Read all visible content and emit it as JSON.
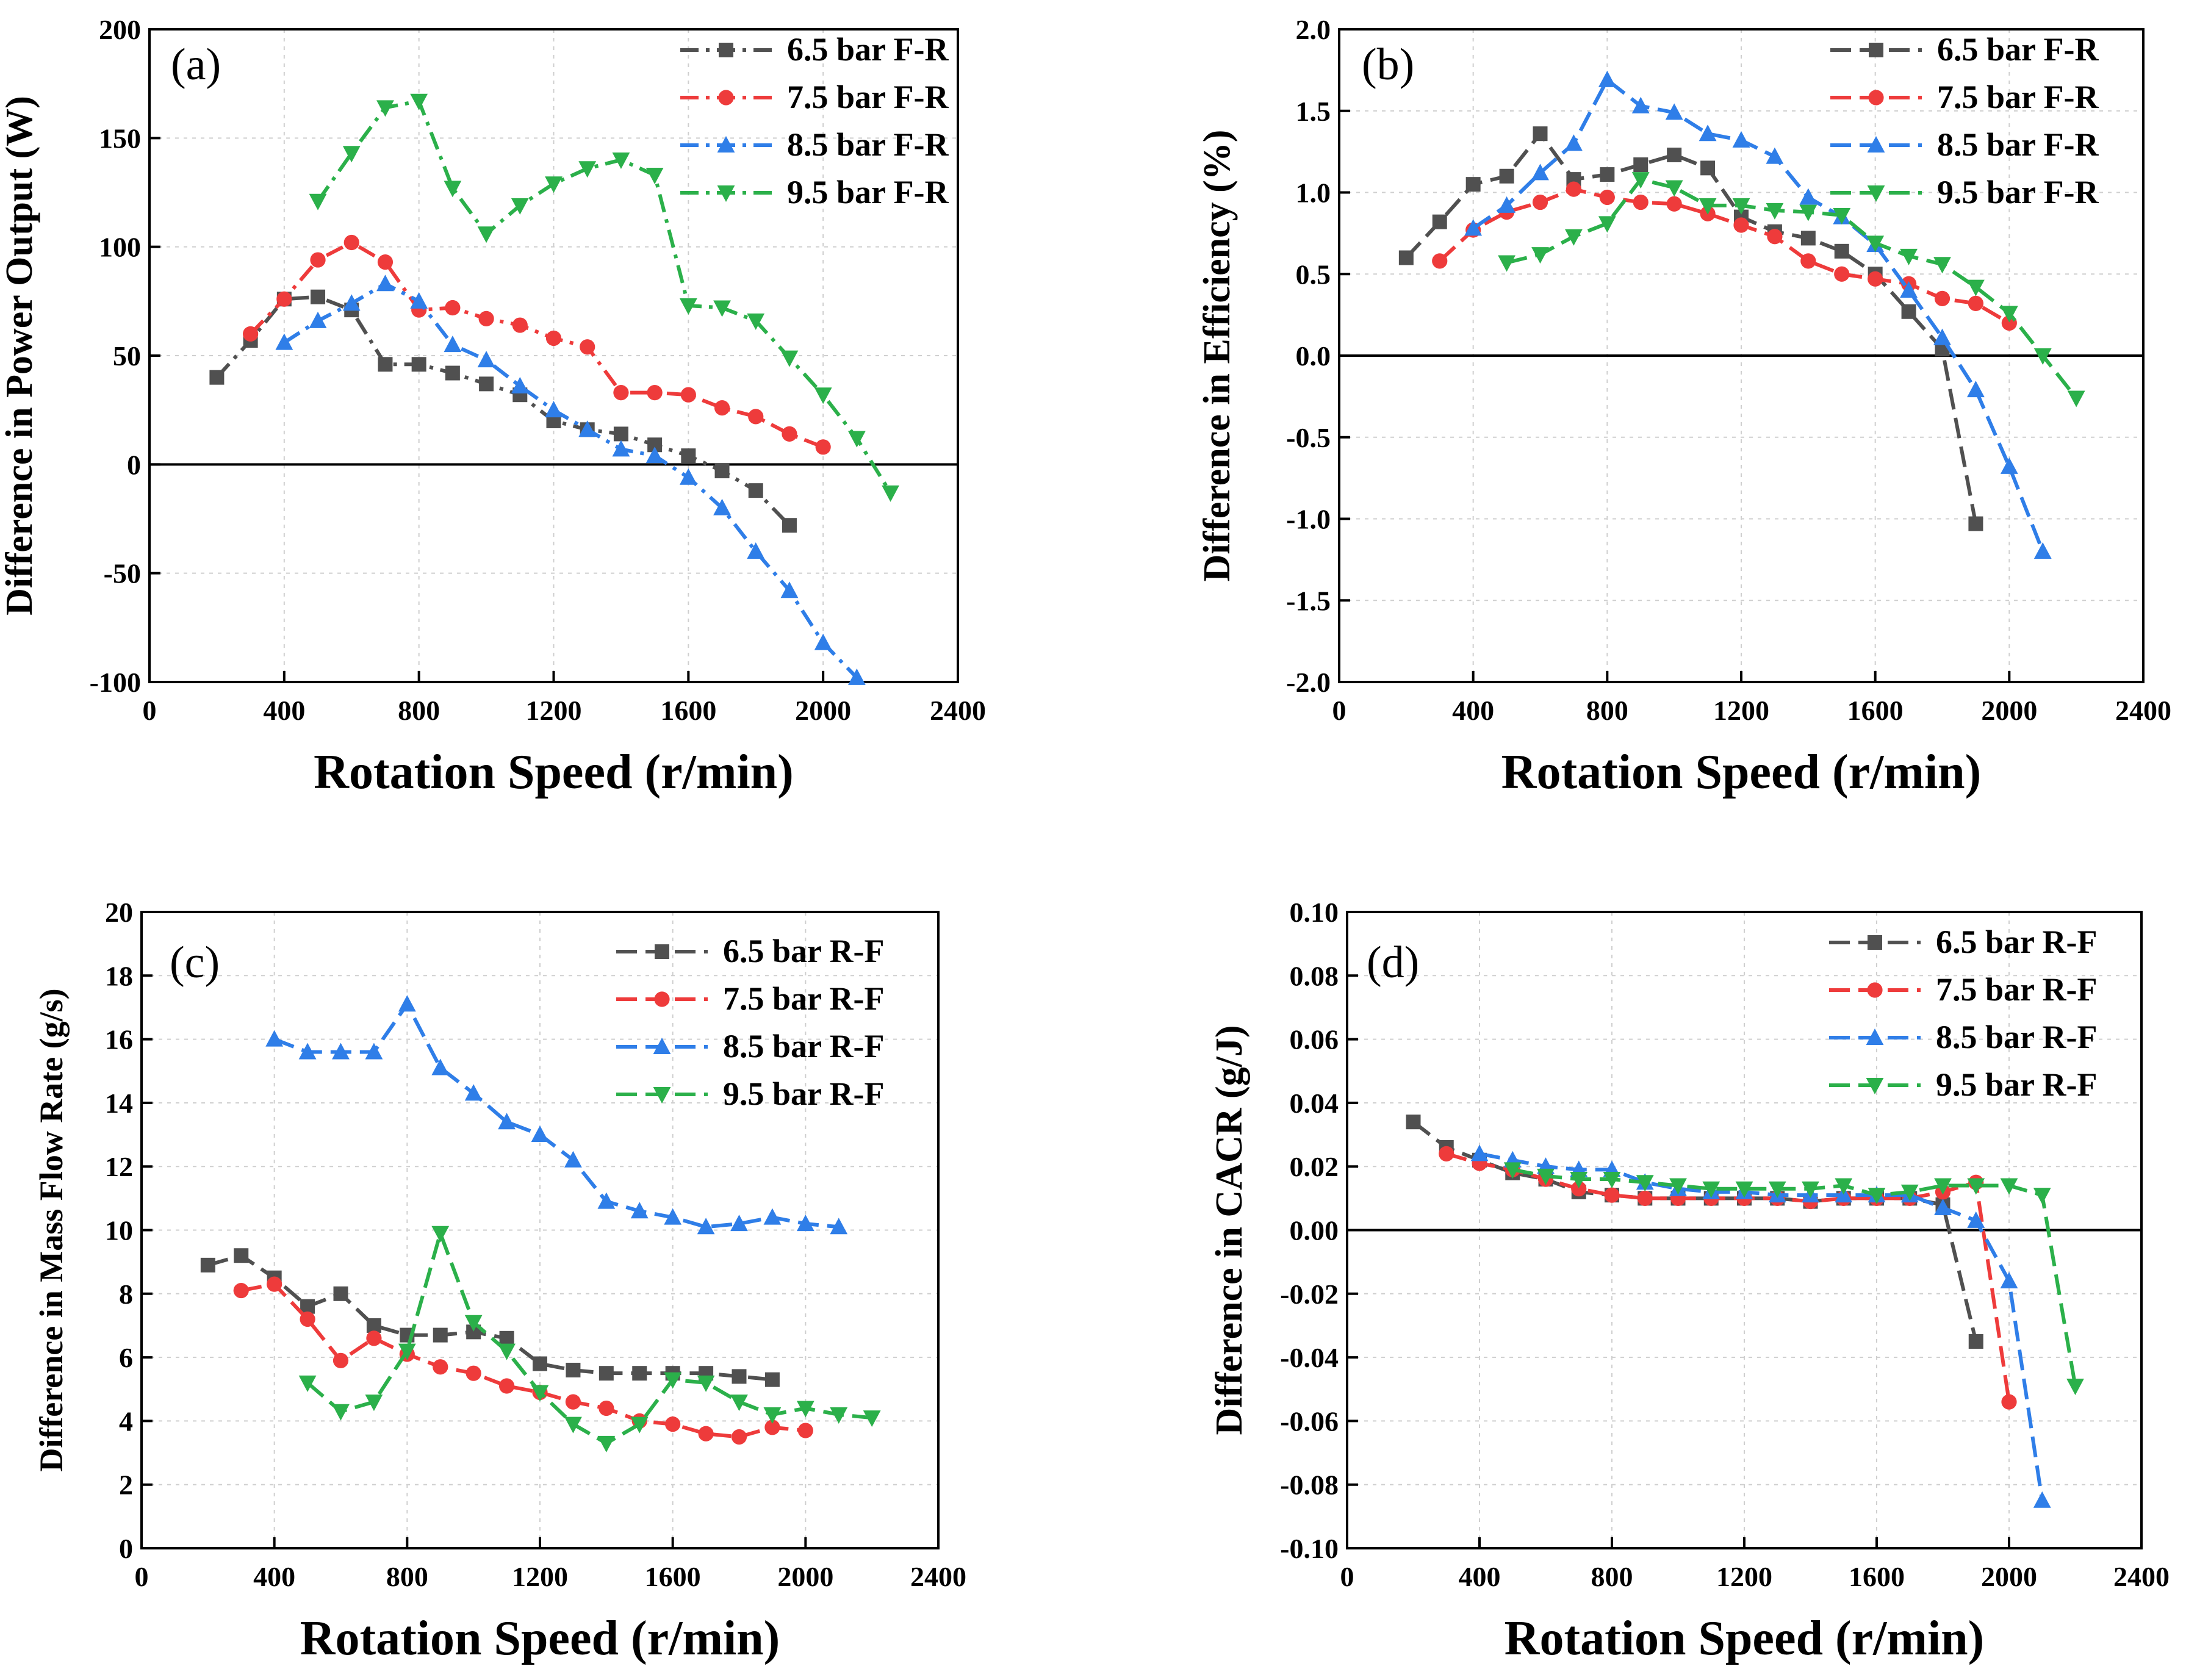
{
  "figure": {
    "description_free": true
  },
  "colors": {
    "s1": "#505050",
    "s2": "#EE3B3B",
    "s3": "#2F7EE8",
    "s4": "#2BB04A",
    "axis": "#000000",
    "grid": "#cfcfcf"
  },
  "chart_data": [
    {
      "id": "a",
      "type": "line",
      "panel_label": "(a)",
      "xlabel": "Rotation Speed (r/min)",
      "ylabel": "Difference in Power Output (W)",
      "xlim": [
        0,
        2400
      ],
      "ylim": [
        -100,
        200
      ],
      "xticks": [
        0,
        400,
        800,
        1200,
        1600,
        2000,
        2400
      ],
      "yticks": [
        -100,
        -50,
        0,
        50,
        100,
        150,
        200
      ],
      "ytick_labels": [
        "-100",
        "-50",
        "0",
        "50",
        "100",
        "150",
        "200"
      ],
      "zero_line": true,
      "legend_position": "top-right",
      "series": [
        {
          "name": "6.5 bar F-R",
          "marker": "square",
          "dash": "dashdot",
          "x": [
            200,
            300,
            400,
            500,
            600,
            700,
            800,
            900,
            1000,
            1100,
            1200,
            1300,
            1400,
            1500,
            1600,
            1700,
            1800,
            1900
          ],
          "y": [
            40,
            57,
            76,
            77,
            71,
            46,
            46,
            42,
            37,
            32,
            20,
            16,
            14,
            9,
            4,
            -3,
            -12,
            -28
          ]
        },
        {
          "name": "7.5 bar F-R",
          "marker": "circle",
          "dash": "dashdot",
          "x": [
            300,
            400,
            500,
            600,
            700,
            800,
            900,
            1000,
            1100,
            1200,
            1300,
            1400,
            1500,
            1600,
            1700,
            1800,
            1900,
            2000
          ],
          "y": [
            60,
            76,
            94,
            102,
            93,
            71,
            72,
            67,
            64,
            58,
            54,
            33,
            33,
            32,
            26,
            22,
            14,
            8
          ]
        },
        {
          "name": "8.5 bar F-R",
          "marker": "triangle-up",
          "dash": "dashdot",
          "x": [
            400,
            500,
            600,
            700,
            800,
            900,
            1000,
            1100,
            1200,
            1300,
            1400,
            1500,
            1600,
            1700,
            1800,
            1900,
            2000,
            2100
          ],
          "y": [
            56,
            66,
            74,
            83,
            75,
            55,
            48,
            36,
            25,
            16,
            7,
            4,
            -6,
            -20,
            -40,
            -58,
            -82,
            -98
          ]
        },
        {
          "name": "9.5 bar F-R",
          "marker": "triangle-down",
          "dash": "dashdot",
          "x": [
            500,
            600,
            700,
            800,
            900,
            1000,
            1100,
            1200,
            1300,
            1400,
            1500,
            1600,
            1700,
            1800,
            1900,
            2000,
            2100,
            2200
          ],
          "y": [
            121,
            143,
            164,
            167,
            127,
            106,
            119,
            129,
            136,
            140,
            133,
            73,
            72,
            66,
            49,
            32,
            12,
            -13
          ]
        }
      ]
    },
    {
      "id": "b",
      "type": "line",
      "panel_label": "(b)",
      "xlabel": "Rotation Speed (r/min)",
      "ylabel": "Difference in Efficiency (%)",
      "xlim": [
        0,
        2400
      ],
      "ylim": [
        -2.0,
        2.0
      ],
      "xticks": [
        0,
        400,
        800,
        1200,
        1600,
        2000,
        2400
      ],
      "yticks": [
        -2.0,
        -1.5,
        -1.0,
        -0.5,
        0.0,
        0.5,
        1.0,
        1.5,
        2.0
      ],
      "ytick_labels": [
        "-2.0",
        "-1.5",
        "-1.0",
        "-0.5",
        "0.0",
        "0.5",
        "1.0",
        "1.5",
        "2.0"
      ],
      "zero_line": true,
      "legend_position": "top-right",
      "series": [
        {
          "name": "6.5 bar F-R",
          "marker": "square",
          "dash": "dashed",
          "x": [
            200,
            300,
            400,
            500,
            600,
            700,
            800,
            900,
            1000,
            1100,
            1200,
            1300,
            1400,
            1500,
            1600,
            1700,
            1800,
            1900
          ],
          "y": [
            0.6,
            0.82,
            1.05,
            1.1,
            1.36,
            1.08,
            1.11,
            1.17,
            1.23,
            1.15,
            0.85,
            0.76,
            0.72,
            0.64,
            0.5,
            0.27,
            0.04,
            -1.03
          ]
        },
        {
          "name": "7.5 bar F-R",
          "marker": "circle",
          "dash": "dashed",
          "x": [
            300,
            400,
            500,
            600,
            700,
            800,
            900,
            1000,
            1100,
            1200,
            1300,
            1400,
            1500,
            1600,
            1700,
            1800,
            1900,
            2000
          ],
          "y": [
            0.58,
            0.77,
            0.88,
            0.94,
            1.02,
            0.97,
            0.94,
            0.93,
            0.87,
            0.8,
            0.73,
            0.58,
            0.5,
            0.47,
            0.44,
            0.35,
            0.32,
            0.2
          ]
        },
        {
          "name": "8.5 bar F-R",
          "marker": "triangle-up",
          "dash": "dashed",
          "x": [
            400,
            500,
            600,
            700,
            800,
            900,
            1000,
            1100,
            1200,
            1300,
            1400,
            1500,
            1600,
            1700,
            1800,
            1900,
            2000,
            2100
          ],
          "y": [
            0.78,
            0.92,
            1.12,
            1.3,
            1.69,
            1.53,
            1.49,
            1.36,
            1.32,
            1.22,
            0.97,
            0.85,
            0.68,
            0.4,
            0.11,
            -0.21,
            -0.68,
            -1.2
          ]
        },
        {
          "name": "9.5 bar F-R",
          "marker": "triangle-down",
          "dash": "dashed",
          "x": [
            500,
            600,
            700,
            800,
            900,
            1000,
            1100,
            1200,
            1300,
            1400,
            1500,
            1600,
            1700,
            1800,
            1900,
            2000,
            2100,
            2200
          ],
          "y": [
            0.57,
            0.62,
            0.73,
            0.81,
            1.08,
            1.03,
            0.92,
            0.92,
            0.89,
            0.88,
            0.86,
            0.69,
            0.61,
            0.56,
            0.42,
            0.26,
            0.0,
            -0.26
          ]
        }
      ]
    },
    {
      "id": "c",
      "type": "line",
      "panel_label": "(c)",
      "xlabel": "Rotation Speed (r/min)",
      "ylabel": "Difference in Mass Flow Rate (g/s)",
      "xlim": [
        0,
        2400
      ],
      "ylim": [
        0,
        20
      ],
      "xticks": [
        0,
        400,
        800,
        1200,
        1600,
        2000,
        2400
      ],
      "yticks": [
        0,
        2,
        4,
        6,
        8,
        10,
        12,
        14,
        16,
        18,
        20
      ],
      "ytick_labels": [
        "0",
        "2",
        "4",
        "6",
        "8",
        "10",
        "12",
        "14",
        "16",
        "18",
        "20"
      ],
      "zero_line": false,
      "legend_position": "top-right",
      "series": [
        {
          "name": "6.5 bar R-F",
          "marker": "square",
          "dash": "dashed",
          "x": [
            200,
            300,
            400,
            500,
            600,
            700,
            800,
            900,
            1000,
            1100,
            1200,
            1300,
            1400,
            1500,
            1600,
            1700,
            1800,
            1900
          ],
          "y": [
            8.9,
            9.2,
            8.5,
            7.6,
            8.0,
            7.0,
            6.7,
            6.7,
            6.8,
            6.6,
            5.8,
            5.6,
            5.5,
            5.5,
            5.5,
            5.5,
            5.4,
            5.3
          ]
        },
        {
          "name": "7.5 bar R-F",
          "marker": "circle",
          "dash": "dashed",
          "x": [
            300,
            400,
            500,
            600,
            700,
            800,
            900,
            1000,
            1100,
            1200,
            1300,
            1400,
            1500,
            1600,
            1700,
            1800,
            1900,
            2000
          ],
          "y": [
            8.1,
            8.3,
            7.2,
            5.9,
            6.6,
            6.1,
            5.7,
            5.5,
            5.1,
            4.9,
            4.6,
            4.4,
            4.0,
            3.9,
            3.6,
            3.5,
            3.8,
            3.7
          ]
        },
        {
          "name": "8.5 bar R-F",
          "marker": "triangle-up",
          "dash": "dashed",
          "x": [
            400,
            500,
            600,
            700,
            800,
            900,
            1000,
            1100,
            1200,
            1300,
            1400,
            1500,
            1600,
            1700,
            1800,
            1900,
            2000,
            2100
          ],
          "y": [
            16.0,
            15.6,
            15.6,
            15.6,
            17.1,
            15.1,
            14.3,
            13.4,
            13.0,
            12.2,
            10.9,
            10.6,
            10.4,
            10.1,
            10.2,
            10.4,
            10.2,
            10.1
          ]
        },
        {
          "name": "9.5 bar R-F",
          "marker": "triangle-down",
          "dash": "dashed",
          "x": [
            500,
            600,
            700,
            800,
            900,
            1000,
            1100,
            1200,
            1300,
            1400,
            1500,
            1600,
            1700,
            1800,
            1900,
            2000,
            2100,
            2200
          ],
          "y": [
            5.2,
            4.3,
            4.6,
            6.2,
            9.9,
            7.1,
            6.2,
            4.9,
            3.9,
            3.3,
            3.9,
            5.3,
            5.2,
            4.6,
            4.2,
            4.4,
            4.2,
            4.1
          ]
        }
      ]
    },
    {
      "id": "d",
      "type": "line",
      "panel_label": "(d)",
      "xlabel": "Rotation Speed (r/min)",
      "ylabel": "Difference in CACR (g/J)",
      "xlim": [
        0,
        2400
      ],
      "ylim": [
        -0.1,
        0.1
      ],
      "xticks": [
        0,
        400,
        800,
        1200,
        1600,
        2000,
        2400
      ],
      "yticks": [
        -0.1,
        -0.08,
        -0.06,
        -0.04,
        -0.02,
        0.0,
        0.02,
        0.04,
        0.06,
        0.08,
        0.1
      ],
      "ytick_labels": [
        "-0.10",
        "-0.08",
        "-0.06",
        "-0.04",
        "-0.02",
        "0.00",
        "0.02",
        "0.04",
        "0.06",
        "0.08",
        "0.10"
      ],
      "zero_line": true,
      "legend_position": "top-right",
      "series": [
        {
          "name": "6.5 bar R-F",
          "marker": "square",
          "dash": "dashed",
          "x": [
            200,
            300,
            400,
            500,
            600,
            700,
            800,
            900,
            1000,
            1100,
            1200,
            1300,
            1400,
            1500,
            1600,
            1700,
            1800,
            1900
          ],
          "y": [
            0.034,
            0.026,
            0.022,
            0.018,
            0.016,
            0.012,
            0.011,
            0.01,
            0.01,
            0.01,
            0.01,
            0.01,
            0.009,
            0.01,
            0.01,
            0.01,
            0.008,
            -0.035
          ]
        },
        {
          "name": "7.5 bar R-F",
          "marker": "circle",
          "dash": "dashed",
          "x": [
            300,
            400,
            500,
            600,
            700,
            800,
            900,
            1000,
            1100,
            1200,
            1300,
            1400,
            1500,
            1600,
            1700,
            1800,
            1900,
            2000
          ],
          "y": [
            0.024,
            0.021,
            0.019,
            0.016,
            0.013,
            0.011,
            0.01,
            0.01,
            0.01,
            0.01,
            0.01,
            0.009,
            0.01,
            0.01,
            0.01,
            0.012,
            0.015,
            -0.054
          ]
        },
        {
          "name": "8.5 bar R-F",
          "marker": "triangle-up",
          "dash": "dashed",
          "x": [
            400,
            500,
            600,
            700,
            800,
            900,
            1000,
            1100,
            1200,
            1300,
            1400,
            1500,
            1600,
            1700,
            1800,
            1900,
            2000,
            2100
          ],
          "y": [
            0.024,
            0.022,
            0.02,
            0.019,
            0.019,
            0.015,
            0.013,
            0.012,
            0.012,
            0.011,
            0.011,
            0.011,
            0.011,
            0.011,
            0.007,
            0.003,
            -0.016,
            -0.085
          ]
        },
        {
          "name": "9.5 bar R-F",
          "marker": "triangle-down",
          "dash": "dashed",
          "x": [
            500,
            600,
            700,
            800,
            900,
            1000,
            1100,
            1200,
            1300,
            1400,
            1500,
            1600,
            1700,
            1800,
            1900,
            2000,
            2100,
            2200
          ],
          "y": [
            0.019,
            0.017,
            0.016,
            0.016,
            0.015,
            0.014,
            0.013,
            0.013,
            0.013,
            0.013,
            0.014,
            0.011,
            0.012,
            0.014,
            0.014,
            0.014,
            0.011,
            -0.049
          ]
        }
      ]
    }
  ]
}
